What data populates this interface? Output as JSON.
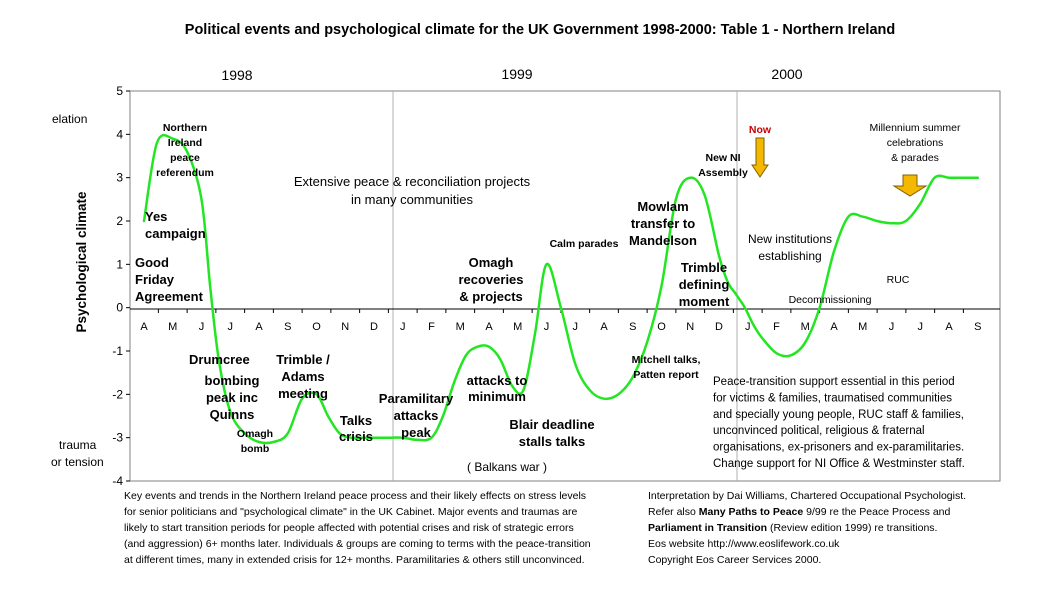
{
  "chart_data": {
    "type": "line",
    "title": "Political events and psychological climate for the UK Government 1998-2000: Table 1 - Northern Ireland",
    "ylabel": "Psychological climate",
    "xlabel": "",
    "ylim": [
      -4,
      5
    ],
    "yticks": [
      5,
      4,
      3,
      2,
      1,
      0,
      -1,
      -2,
      -3,
      -4
    ],
    "grid": false,
    "year_labels": [
      "1998",
      "1999",
      "2000"
    ],
    "categories": [
      "A",
      "M",
      "J",
      "J",
      "A",
      "S",
      "O",
      "N",
      "D",
      "J",
      "F",
      "M",
      "A",
      "M",
      "J",
      "J",
      "A",
      "S",
      "O",
      "N",
      "D",
      "J",
      "F",
      "M",
      "A",
      "M",
      "J",
      "J",
      "A",
      "S"
    ],
    "y_extreme_labels": {
      "top": "elation",
      "bottom_line1": "trauma",
      "bottom_line2": "or tension"
    },
    "series": [
      {
        "name": "Psychological climate",
        "color": "#22e622",
        "x": [
          0,
          0.45,
          1,
          1.5,
          2,
          2.3,
          2.6,
          3,
          3.5,
          4,
          4.5,
          5,
          5.5,
          6,
          6.4,
          6.8,
          7.2,
          7.6,
          8,
          8.5,
          9,
          9.5,
          10,
          10.4,
          10.8,
          11.2,
          11.6,
          12,
          12.4,
          12.8,
          13.2,
          13.6,
          14,
          14.5,
          15,
          15.5,
          16,
          16.5,
          17,
          17.5,
          18,
          18.5,
          19,
          19.5,
          20,
          20.3,
          20.6,
          20.9,
          21.2,
          21.5,
          22,
          22.5,
          23,
          23.5,
          24,
          24.5,
          25,
          25.5,
          26,
          26.5,
          27,
          27.5,
          28,
          28.5,
          29
        ],
        "values": [
          2.0,
          3.8,
          3.9,
          3.6,
          2.5,
          0.5,
          -1.2,
          -2.4,
          -2.9,
          -3.1,
          -3.1,
          -2.9,
          -2.1,
          -2.0,
          -2.5,
          -2.9,
          -3.0,
          -3.0,
          -3.0,
          -3.0,
          -3.0,
          -3.05,
          -3.0,
          -2.5,
          -1.7,
          -1.1,
          -0.9,
          -0.9,
          -1.2,
          -1.8,
          -1.9,
          -0.6,
          1.0,
          0.0,
          -1.3,
          -1.9,
          -2.1,
          -2.0,
          -1.6,
          -0.8,
          0.5,
          2.5,
          3.0,
          2.6,
          1.2,
          0.6,
          0.3,
          0.0,
          -0.4,
          -0.7,
          -1.05,
          -1.1,
          -0.8,
          0.0,
          1.3,
          2.1,
          2.1,
          2.0,
          1.95,
          2.0,
          2.4,
          3.0,
          3.0,
          3.0,
          3.0
        ]
      }
    ],
    "annotations": [
      {
        "lines": [
          "Northern",
          "Ireland",
          "peace",
          "referendum"
        ],
        "weight": "bold",
        "size": 10.5
      },
      {
        "lines": [
          "Yes",
          "campaign"
        ],
        "weight": "bold",
        "size": 13
      },
      {
        "lines": [
          "Good",
          "Friday",
          "Agreement"
        ],
        "weight": "bold",
        "size": 13
      },
      {
        "lines": [
          "Extensive peace & reconciliation projects",
          "in many communities"
        ],
        "weight": "normal",
        "size": 13
      },
      {
        "lines": [
          "Drumcree"
        ],
        "weight": "bold",
        "size": 13
      },
      {
        "lines": [
          "bombing",
          "peak inc",
          "Quinns"
        ],
        "weight": "bold",
        "size": 13
      },
      {
        "lines": [
          "Omagh",
          "bomb"
        ],
        "weight": "bold",
        "size": 10.5
      },
      {
        "lines": [
          "Trimble /",
          "Adams",
          "meeting"
        ],
        "weight": "bold",
        "size": 13
      },
      {
        "lines": [
          "Talks",
          "crisis"
        ],
        "weight": "bold",
        "size": 13
      },
      {
        "lines": [
          "Paramilitary",
          "attacks",
          "peak"
        ],
        "weight": "bold",
        "size": 13
      },
      {
        "lines": [
          "Omagh",
          "recoveries",
          "& projects"
        ],
        "weight": "bold",
        "size": 13
      },
      {
        "lines": [
          "attacks to",
          "minimum"
        ],
        "weight": "bold",
        "size": 13
      },
      {
        "lines": [
          "Blair deadline",
          "stalls talks"
        ],
        "weight": "bold",
        "size": 13
      },
      {
        "lines": [
          "( Balkans war )"
        ],
        "weight": "normal",
        "size": 12
      },
      {
        "lines": [
          "Calm parades"
        ],
        "weight": "bold",
        "size": 10.5
      },
      {
        "lines": [
          "Mowlam",
          "transfer to",
          "Mandelson"
        ],
        "weight": "bold",
        "size": 13
      },
      {
        "lines": [
          "Trimble",
          "defining",
          "moment"
        ],
        "weight": "bold",
        "size": 13
      },
      {
        "lines": [
          "Mitchell talks,",
          "Patten report"
        ],
        "weight": "bold",
        "size": 10.5
      },
      {
        "lines": [
          "New NI",
          "Assembly"
        ],
        "weight": "bold",
        "size": 10.5
      },
      {
        "lines": [
          "New institutions",
          "establishing"
        ],
        "weight": "normal",
        "size": 12
      },
      {
        "lines": [
          "Decommissioning"
        ],
        "weight": "normal",
        "size": 10.5
      },
      {
        "lines": [
          "RUC"
        ],
        "weight": "normal",
        "size": 10.5
      },
      {
        "lines": [
          "Millennium summer",
          "celebrations",
          "& parades"
        ],
        "weight": "normal",
        "size": 10.5
      },
      {
        "lines": [
          "Now"
        ],
        "weight": "bold",
        "size": 10.5,
        "color": "#cc0000"
      },
      {
        "lines": [
          "Peace-transition support essential in this period",
          "for victims & families, traumatised communities",
          "and specially young people, RUC staff & families,",
          "unconvinced political, religious & fraternal",
          "organisations,  ex-prisoners and ex-paramilitaries.",
          "Change support for NI Office & Westminster staff."
        ],
        "weight": "normal",
        "size": 11.5
      }
    ],
    "arrow_colors": {
      "fill": "#f5b800",
      "stroke": "#806000"
    }
  },
  "footer_left": [
    "Key events and trends in the Northern Ireland peace process and their likely effects on stress levels",
    "for senior politicians and \"psychological climate\" in the UK Cabinet. Major events and traumas are",
    "likely to start transition periods for people affected with potential crises and risk of strategic  errors",
    "(and aggression) 6+ months later.  Individuals & groups are coming to terms with the peace-transition",
    "at different times, many in extended crisis for 12+ months.  Paramilitaries & others still unconvinced."
  ],
  "footer_right": {
    "line1": "Interpretation by Dai Williams, Chartered Occupational Psychologist.",
    "line2_pre": "Refer also ",
    "line2_bold": "Many Paths to Peace",
    "line2_post": " 9/99 re the  Peace Process and",
    "line3_bold": "Parliament in Transition",
    "line3_post": " (Review edition 1999) re transitions.",
    "line4": "Eos website http://www.eoslifework.co.uk",
    "line5": "Copyright Eos Career Services 2000."
  }
}
